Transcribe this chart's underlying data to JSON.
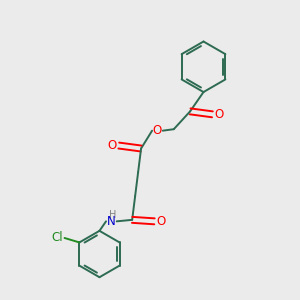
{
  "bg_color": "#ebebeb",
  "bond_color": "#2d6b52",
  "O_color": "#ff0000",
  "N_color": "#0000cc",
  "Cl_color": "#228B22",
  "H_color": "#808080",
  "lw": 1.4,
  "fig_size": [
    3.0,
    3.0
  ],
  "dpi": 100,
  "xlim": [
    0,
    10
  ],
  "ylim": [
    0,
    10
  ]
}
